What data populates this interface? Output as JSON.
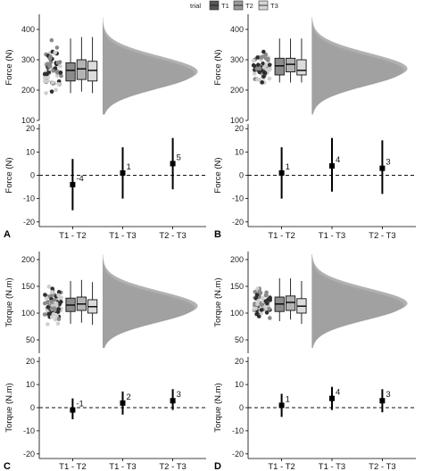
{
  "legend": {
    "title": "trial",
    "items": [
      {
        "label": "T1",
        "color": "#555555"
      },
      {
        "label": "T2",
        "color": "#999999"
      },
      {
        "label": "T3",
        "color": "#d6d6d6"
      }
    ]
  },
  "chart_data": [
    {
      "panel": "A",
      "type": "raincloud",
      "ylabel": "Force (N)",
      "ylim": [
        100,
        450
      ],
      "yticks": [
        100,
        200,
        300,
        400
      ],
      "boxes": [
        {
          "trial": "T1",
          "min": 190,
          "q1": 230,
          "median": 265,
          "q3": 290,
          "max": 370
        },
        {
          "trial": "T2",
          "min": 195,
          "q1": 235,
          "median": 270,
          "q3": 300,
          "max": 375
        },
        {
          "trial": "T3",
          "min": 190,
          "q1": 230,
          "median": 265,
          "q3": 295,
          "max": 375
        }
      ],
      "density_peak": 255,
      "density_range": [
        120,
        440
      ]
    },
    {
      "panel": "A",
      "type": "pointrange",
      "ylabel": "Force (N)",
      "ylim": [
        -22,
        22
      ],
      "yticks": [
        -20,
        -10,
        0,
        10,
        20
      ],
      "categories": [
        "T1 - T2",
        "T1 - T3",
        "T2 - T3"
      ],
      "values": [
        -4,
        1,
        5
      ],
      "lower": [
        -15,
        -10,
        -6
      ],
      "upper": [
        7,
        12,
        16
      ],
      "labels": [
        "-4",
        "1",
        "5"
      ]
    },
    {
      "panel": "B",
      "type": "raincloud",
      "ylabel": "Force (N)",
      "ylim": [
        100,
        450
      ],
      "yticks": [
        100,
        200,
        300,
        400
      ],
      "boxes": [
        {
          "trial": "T1",
          "min": 225,
          "q1": 250,
          "median": 280,
          "q3": 305,
          "max": 370
        },
        {
          "trial": "T2",
          "min": 225,
          "q1": 260,
          "median": 285,
          "q3": 305,
          "max": 370
        },
        {
          "trial": "T3",
          "min": 225,
          "q1": 250,
          "median": 265,
          "q3": 300,
          "max": 370
        }
      ],
      "density_peak": 265,
      "density_range": [
        120,
        440
      ]
    },
    {
      "panel": "B",
      "type": "pointrange",
      "ylabel": "Force (N)",
      "ylim": [
        -22,
        22
      ],
      "yticks": [
        -20,
        -10,
        0,
        10,
        20
      ],
      "categories": [
        "T1 - T2",
        "T1 - T3",
        "T2 - T3"
      ],
      "values": [
        1,
        4,
        3
      ],
      "lower": [
        -10,
        -7,
        -8
      ],
      "upper": [
        12,
        16,
        15
      ],
      "labels": [
        "1",
        "4",
        "3"
      ]
    },
    {
      "panel": "C",
      "type": "raincloud",
      "ylabel": "Torque (N.m)",
      "ylim": [
        25,
        215
      ],
      "yticks": [
        50,
        100,
        150,
        200
      ],
      "boxes": [
        {
          "trial": "T1",
          "min": 80,
          "q1": 103,
          "median": 115,
          "q3": 128,
          "max": 160
        },
        {
          "trial": "T2",
          "min": 82,
          "q1": 105,
          "median": 117,
          "q3": 130,
          "max": 162
        },
        {
          "trial": "T3",
          "min": 78,
          "q1": 100,
          "median": 112,
          "q3": 125,
          "max": 158
        }
      ],
      "density_peak": 110,
      "density_range": [
        35,
        210
      ]
    },
    {
      "panel": "C",
      "type": "pointrange",
      "ylabel": "Torque (N.m)",
      "ylim": [
        -22,
        22
      ],
      "yticks": [
        -20,
        -10,
        0,
        10,
        20
      ],
      "categories": [
        "T1 - T2",
        "T1 - T3",
        "T2 - T3"
      ],
      "values": [
        -1,
        2,
        3
      ],
      "lower": [
        -5,
        -3,
        -1
      ],
      "upper": [
        4,
        7,
        8
      ],
      "labels": [
        "-1",
        "2",
        "3"
      ]
    },
    {
      "panel": "D",
      "type": "raincloud",
      "ylabel": "Torque (N.m)",
      "ylim": [
        25,
        215
      ],
      "yticks": [
        50,
        100,
        150,
        200
      ],
      "boxes": [
        {
          "trial": "T1",
          "min": 85,
          "q1": 103,
          "median": 117,
          "q3": 130,
          "max": 165
        },
        {
          "trial": "T2",
          "min": 88,
          "q1": 105,
          "median": 120,
          "q3": 132,
          "max": 165
        },
        {
          "trial": "T3",
          "min": 80,
          "q1": 100,
          "median": 113,
          "q3": 127,
          "max": 160
        }
      ],
      "density_peak": 115,
      "density_range": [
        35,
        210
      ]
    },
    {
      "panel": "D",
      "type": "pointrange",
      "ylabel": "Torque (N.m)",
      "ylim": [
        -22,
        22
      ],
      "yticks": [
        -20,
        -10,
        0,
        10,
        20
      ],
      "categories": [
        "T1 - T2",
        "T1 - T3",
        "T2 - T3"
      ],
      "values": [
        1,
        4,
        3
      ],
      "lower": [
        -4,
        -1,
        -2
      ],
      "upper": [
        6,
        9,
        8
      ],
      "labels": [
        "1",
        "4",
        "3"
      ]
    }
  ]
}
